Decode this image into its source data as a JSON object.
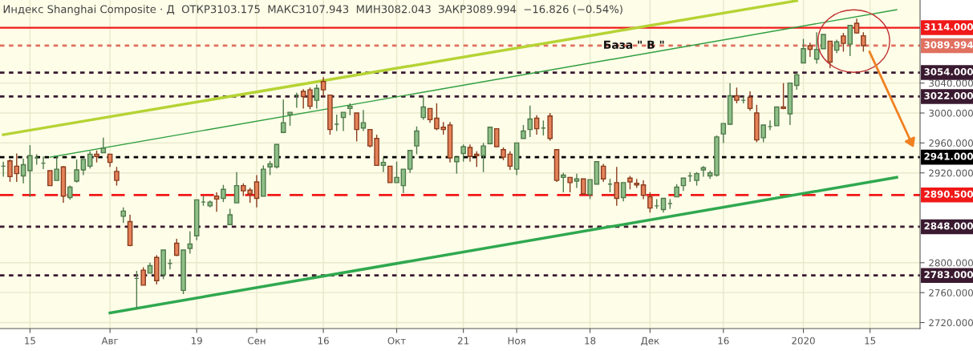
{
  "chart_data": {
    "type": "candlestick",
    "title": "Индекс Shanghai Composite · Д  ОТКР3103.175  МАКС3107.943  МИН3082.043  ЗАКР3089.994  −16.826 (−0.54%)",
    "annotations": [
      "База \" В \""
    ],
    "categories": [
      null,
      null,
      null,
      null,
      "15",
      null,
      null,
      null,
      null,
      null,
      null,
      null,
      null,
      null,
      null,
      null,
      "Авг",
      null,
      null,
      null,
      null,
      null,
      null,
      null,
      null,
      null,
      null,
      null,
      null,
      "19",
      null,
      null,
      null,
      null,
      null,
      null,
      null,
      null,
      "Сен",
      null,
      null,
      null,
      null,
      null,
      null,
      null,
      null,
      null,
      "16",
      null,
      null,
      null,
      null,
      null,
      null,
      null,
      null,
      null,
      null,
      "Окт",
      null,
      null,
      null,
      null,
      null,
      null,
      null,
      null,
      null,
      "21",
      null,
      null,
      null,
      null,
      null,
      null,
      null,
      "Ноя",
      null,
      null,
      null,
      null,
      null,
      null,
      null,
      null,
      null,
      null,
      "18",
      null,
      null,
      null,
      null,
      null,
      null,
      null,
      null,
      "Дек",
      null,
      null,
      null,
      null,
      null,
      null,
      null,
      null,
      null,
      null,
      "16",
      null,
      null,
      null,
      null,
      null,
      null,
      null,
      null,
      null,
      null,
      null,
      "2020",
      null,
      null,
      null,
      null,
      null,
      null,
      null,
      null,
      null,
      "15",
      null,
      null,
      null,
      null,
      null,
      null,
      null
    ],
    "ohlc": [
      [
        2929,
        2935,
        2915,
        2929
      ],
      [
        2936,
        2938,
        2908,
        2915
      ],
      [
        2929,
        2946,
        2908,
        2919
      ],
      [
        2916,
        2939,
        2906,
        2931
      ],
      [
        2923,
        2957,
        2888,
        2943
      ],
      [
        2940,
        2945,
        2931,
        2940
      ],
      [
        2933,
        2942,
        2925,
        2933
      ],
      [
        2923,
        2923,
        2903,
        2903
      ],
      [
        2910,
        2942,
        2910,
        2925
      ],
      [
        2928,
        2929,
        2880,
        2889
      ],
      [
        2887,
        2903,
        2884,
        2901
      ],
      [
        2909,
        2938,
        2907,
        2924
      ],
      [
        2924,
        2938,
        2917,
        2938
      ],
      [
        2929,
        2949,
        2926,
        2945
      ],
      [
        2945,
        2950,
        2934,
        2942
      ],
      [
        2947,
        2967,
        2947,
        2953
      ],
      [
        2945,
        2945,
        2928,
        2934
      ],
      [
        2922,
        2928,
        2903,
        2910
      ],
      [
        2862,
        2874,
        2853,
        2869
      ],
      [
        2855,
        2864,
        2822,
        2823
      ],
      [
        2779,
        2789,
        2739,
        2779
      ],
      [
        2790,
        2794,
        2770,
        2770
      ],
      [
        2786,
        2800,
        2786,
        2796
      ],
      [
        2807,
        2810,
        2771,
        2776
      ],
      [
        2784,
        2817,
        2778,
        2817
      ],
      [
        2799,
        2805,
        2791,
        2799
      ],
      [
        2826,
        2832,
        2809,
        2810
      ],
      [
        2763,
        2817,
        2758,
        2817
      ],
      [
        2819,
        2842,
        2812,
        2825
      ],
      [
        2836,
        2884,
        2830,
        2884
      ],
      [
        2881,
        2889,
        2876,
        2881
      ],
      [
        2876,
        2883,
        2874,
        2881
      ],
      [
        2889,
        2894,
        2868,
        2885
      ],
      [
        2886,
        2904,
        2881,
        2898
      ],
      [
        2851,
        2872,
        2851,
        2864
      ],
      [
        2880,
        2921,
        2880,
        2903
      ],
      [
        2903,
        2906,
        2889,
        2896
      ],
      [
        2897,
        2900,
        2880,
        2892
      ],
      [
        2908,
        2917,
        2874,
        2886
      ],
      [
        2889,
        2930,
        2889,
        2925
      ],
      [
        2928,
        2936,
        2917,
        2932
      ],
      [
        2928,
        2958,
        2926,
        2958
      ],
      [
        2974,
        3018,
        2973,
        2987
      ],
      [
        2998,
        3001,
        2983,
        3001
      ],
      [
        3024,
        3027,
        3007,
        3024
      ],
      [
        3029,
        3032,
        3006,
        3022
      ],
      [
        3031,
        3034,
        3005,
        3009
      ],
      [
        3017,
        3038,
        3006,
        3033
      ],
      [
        3042,
        3048,
        3022,
        3031
      ],
      [
        3024,
        3024,
        2971,
        2978
      ],
      [
        2985,
        2998,
        2976,
        2985
      ],
      [
        2994,
        3001,
        2976,
        3001
      ],
      [
        3006,
        3013,
        2997,
        3009
      ],
      [
        3000,
        3000,
        2962,
        2978
      ],
      [
        2980,
        3004,
        2976,
        2987
      ],
      [
        2978,
        2978,
        2954,
        2956
      ],
      [
        2966,
        2971,
        2930,
        2930
      ],
      [
        2930,
        2940,
        2921,
        2934
      ],
      [
        2929,
        2929,
        2907,
        2907
      ],
      [
        2907,
        2935,
        2907,
        2914
      ],
      [
        2903,
        2925,
        2893,
        2925
      ],
      [
        2925,
        2950,
        2920,
        2950
      ],
      [
        2956,
        2982,
        2945,
        2976
      ],
      [
        2994,
        3022,
        2991,
        3008
      ],
      [
        3006,
        3006,
        2987,
        2991
      ],
      [
        2993,
        3013,
        2977,
        2979
      ],
      [
        2981,
        2988,
        2971,
        2978
      ],
      [
        2984,
        2988,
        2934,
        2940
      ],
      [
        2935,
        2941,
        2919,
        2941
      ],
      [
        2946,
        2958,
        2935,
        2955
      ],
      [
        2954,
        2958,
        2935,
        2942
      ],
      [
        2945,
        2949,
        2928,
        2943
      ],
      [
        2943,
        2960,
        2921,
        2956
      ],
      [
        2959,
        2981,
        2958,
        2981
      ],
      [
        2979,
        2979,
        2955,
        2955
      ],
      [
        2951,
        2954,
        2937,
        2941
      ],
      [
        2945,
        2949,
        2924,
        2929
      ],
      [
        2925,
        2960,
        2917,
        2960
      ],
      [
        2966,
        2984,
        2966,
        2976
      ],
      [
        2978,
        3010,
        2968,
        2992
      ],
      [
        2993,
        2997,
        2971,
        2979
      ],
      [
        2980,
        2990,
        2970,
        2980
      ],
      [
        2996,
        3000,
        2963,
        2966
      ],
      [
        2951,
        2951,
        2908,
        2910
      ],
      [
        2914,
        2920,
        2894,
        2917
      ],
      [
        2914,
        2914,
        2894,
        2907
      ],
      [
        2909,
        2919,
        2900,
        2912
      ],
      [
        2912,
        2912,
        2892,
        2892
      ],
      [
        2891,
        2911,
        2885,
        2911
      ],
      [
        2905,
        2935,
        2905,
        2935
      ],
      [
        2929,
        2932,
        2908,
        2912
      ],
      [
        2905,
        2912,
        2894,
        2905
      ],
      [
        2907,
        2928,
        2876,
        2886
      ],
      [
        2887,
        2907,
        2882,
        2907
      ],
      [
        2913,
        2916,
        2898,
        2908
      ],
      [
        2906,
        2912,
        2900,
        2904
      ],
      [
        2904,
        2910,
        2885,
        2890
      ],
      [
        2888,
        2894,
        2867,
        2873
      ],
      [
        2876,
        2885,
        2872,
        2876
      ],
      [
        2871,
        2886,
        2867,
        2886
      ],
      [
        2879,
        2885,
        2872,
        2879
      ],
      [
        2888,
        2905,
        2888,
        2901
      ],
      [
        2903,
        2913,
        2896,
        2913
      ],
      [
        2916,
        2921,
        2908,
        2916
      ],
      [
        2910,
        2921,
        2903,
        2919
      ],
      [
        2924,
        2929,
        2915,
        2927
      ],
      [
        2916,
        2923,
        2912,
        2920
      ],
      [
        2917,
        2970,
        2915,
        2968
      ],
      [
        2972,
        2986,
        2960,
        2986
      ],
      [
        2985,
        3040,
        2984,
        3023
      ],
      [
        3023,
        3034,
        3013,
        3017
      ],
      [
        3017,
        3022,
        3013,
        3017
      ],
      [
        3021,
        3029,
        3003,
        3006
      ],
      [
        3000,
        3011,
        2961,
        2964
      ],
      [
        2967,
        2984,
        2961,
        2984
      ],
      [
        2982,
        2990,
        2977,
        2982
      ],
      [
        2983,
        3008,
        2983,
        3008
      ],
      [
        3008,
        3040,
        3005,
        3006
      ],
      [
        2999,
        3040,
        2984,
        3040
      ],
      [
        3037,
        3054,
        3031,
        3051
      ],
      [
        3067,
        3099,
        3067,
        3086
      ],
      [
        3090,
        3094,
        3075,
        3085
      ],
      [
        3072,
        3108,
        3066,
        3085
      ],
      [
        3086,
        3105,
        3086,
        3105
      ],
      [
        3096,
        3096,
        3060,
        3068
      ],
      [
        3084,
        3098,
        3080,
        3095
      ],
      [
        3103,
        3107,
        3082,
        3093
      ],
      [
        3092,
        3117,
        3076,
        3117
      ],
      [
        3120,
        3126,
        3106,
        3107
      ],
      [
        3103.175,
        3107.943,
        3082.043,
        3089.994
      ],
      null,
      null,
      null,
      null,
      null,
      null,
      null,
      null
    ],
    "series": [
      {
        "type": "line",
        "color": "#b5d334",
        "values": [
          2971,
          null,
          null,
          null,
          null,
          null,
          null,
          null,
          null,
          null,
          null,
          null,
          null,
          null,
          null,
          null,
          null,
          null,
          null,
          null,
          null,
          null,
          null,
          null,
          null,
          null,
          null,
          null,
          null,
          null,
          null,
          null,
          null,
          null,
          null,
          null,
          null,
          null,
          null,
          null,
          null,
          null,
          null,
          null,
          null,
          null,
          null,
          null,
          null,
          null,
          null,
          null,
          null,
          null,
          null,
          null,
          null,
          null,
          null,
          null,
          null,
          null,
          null,
          null,
          null,
          null,
          null,
          null,
          null,
          null,
          null,
          null,
          null,
          null,
          null,
          null,
          null,
          null,
          null,
          null,
          null,
          null,
          null,
          null,
          null,
          null,
          null,
          null,
          null,
          null,
          null,
          null,
          null,
          null,
          null,
          null,
          null,
          null,
          null,
          null,
          null,
          null,
          null,
          null,
          null,
          null,
          null,
          null,
          null,
          null,
          null,
          null,
          null,
          null,
          null,
          null,
          null,
          null,
          null,
          3150,
          null,
          null,
          null,
          null,
          null,
          null,
          null,
          null,
          null,
          null,
          null,
          null,
          null,
          null,
          null,
          null,
          null,
          null
        ]
      },
      {
        "type": "line",
        "color": "#2e9e3e",
        "values": [
          null,
          null,
          null,
          null,
          null,
          null,
          null,
          2941,
          null,
          null,
          null,
          null,
          null,
          null,
          null,
          null,
          null,
          null,
          null,
          null,
          null,
          null,
          null,
          null,
          null,
          null,
          null,
          null,
          null,
          null,
          null,
          null,
          null,
          null,
          null,
          null,
          null,
          null,
          null,
          null,
          null,
          null,
          null,
          null,
          null,
          null,
          null,
          null,
          null,
          null,
          null,
          null,
          null,
          null,
          null,
          null,
          null,
          null,
          null,
          null,
          null,
          null,
          null,
          null,
          null,
          null,
          null,
          null,
          null,
          null,
          null,
          null,
          null,
          null,
          null,
          null,
          null,
          null,
          null,
          null,
          null,
          null,
          null,
          null,
          null,
          null,
          null,
          null,
          null,
          null,
          null,
          null,
          null,
          null,
          null,
          null,
          null,
          null,
          null,
          null,
          null,
          null,
          null,
          null,
          null,
          null,
          null,
          null,
          null,
          null,
          null,
          null,
          null,
          null,
          null,
          null,
          null,
          null,
          null,
          null,
          null,
          null,
          null,
          null,
          null,
          null,
          null,
          null,
          null,
          null,
          null,
          null,
          null,
          null,
          3138,
          null,
          null,
          null
        ]
      },
      {
        "type": "line",
        "color": "#2fa84f",
        "values": [
          null,
          null,
          null,
          null,
          null,
          null,
          null,
          null,
          null,
          null,
          null,
          null,
          null,
          null,
          null,
          null,
          2733,
          null,
          null,
          null,
          null,
          null,
          null,
          null,
          null,
          null,
          null,
          null,
          null,
          null,
          null,
          null,
          null,
          null,
          null,
          null,
          null,
          null,
          null,
          null,
          null,
          null,
          null,
          null,
          null,
          null,
          null,
          null,
          null,
          null,
          null,
          null,
          null,
          null,
          null,
          null,
          null,
          null,
          null,
          null,
          null,
          null,
          null,
          null,
          null,
          null,
          null,
          null,
          null,
          null,
          null,
          null,
          null,
          null,
          null,
          null,
          null,
          null,
          null,
          null,
          null,
          null,
          null,
          null,
          null,
          null,
          null,
          null,
          null,
          null,
          null,
          null,
          null,
          null,
          null,
          null,
          null,
          null,
          null,
          null,
          null,
          null,
          null,
          null,
          null,
          null,
          null,
          null,
          null,
          null,
          null,
          null,
          null,
          null,
          null,
          null,
          null,
          null,
          null,
          null,
          null,
          null,
          null,
          null,
          null,
          null,
          null,
          null,
          null,
          null,
          null,
          null,
          null,
          null,
          2914,
          null,
          null,
          null
        ]
      }
    ],
    "ylim": [
      2712,
      3151
    ],
    "yticks": [
      {
        "value": 2720,
        "label": "2720.000"
      },
      {
        "value": 2760,
        "label": "2760.000"
      },
      {
        "value": 2800,
        "label": "2800.000"
      },
      {
        "value": 2920,
        "label": "2920.000"
      },
      {
        "value": 2960,
        "label": "2960.000"
      },
      {
        "value": 3000,
        "label": "3000.000"
      },
      {
        "value": 3040,
        "label": "3040.000"
      }
    ],
    "ref_lines": [
      {
        "axis": "y",
        "value": 3114,
        "label": "3114.000",
        "color": "#f01818",
        "line_style": "solid"
      },
      {
        "axis": "y",
        "value": 3089.994,
        "label": "3089.994",
        "color": "#e07060",
        "line_style": "dotted"
      },
      {
        "axis": "y",
        "value": 3054,
        "label": "3054.000",
        "color": "#3a1a30",
        "line_style": "dotted"
      },
      {
        "axis": "y",
        "value": 3022,
        "label": "3022.000",
        "color": "#3a1a30",
        "line_style": "dotted"
      },
      {
        "axis": "y",
        "value": 2941,
        "label": "2941.000",
        "color": "#000000",
        "line_style": "dotted"
      },
      {
        "axis": "y",
        "value": 2890.5,
        "label": "2890.500",
        "color": "#f01818",
        "line_style": "dashed"
      },
      {
        "axis": "y",
        "value": 2848,
        "label": "2848.000",
        "color": "#3a1a30",
        "line_style": "dotted"
      },
      {
        "axis": "y",
        "value": 2783,
        "label": "2783.000",
        "color": "#3a1a30",
        "line_style": "dotted"
      }
    ],
    "grid": true
  }
}
